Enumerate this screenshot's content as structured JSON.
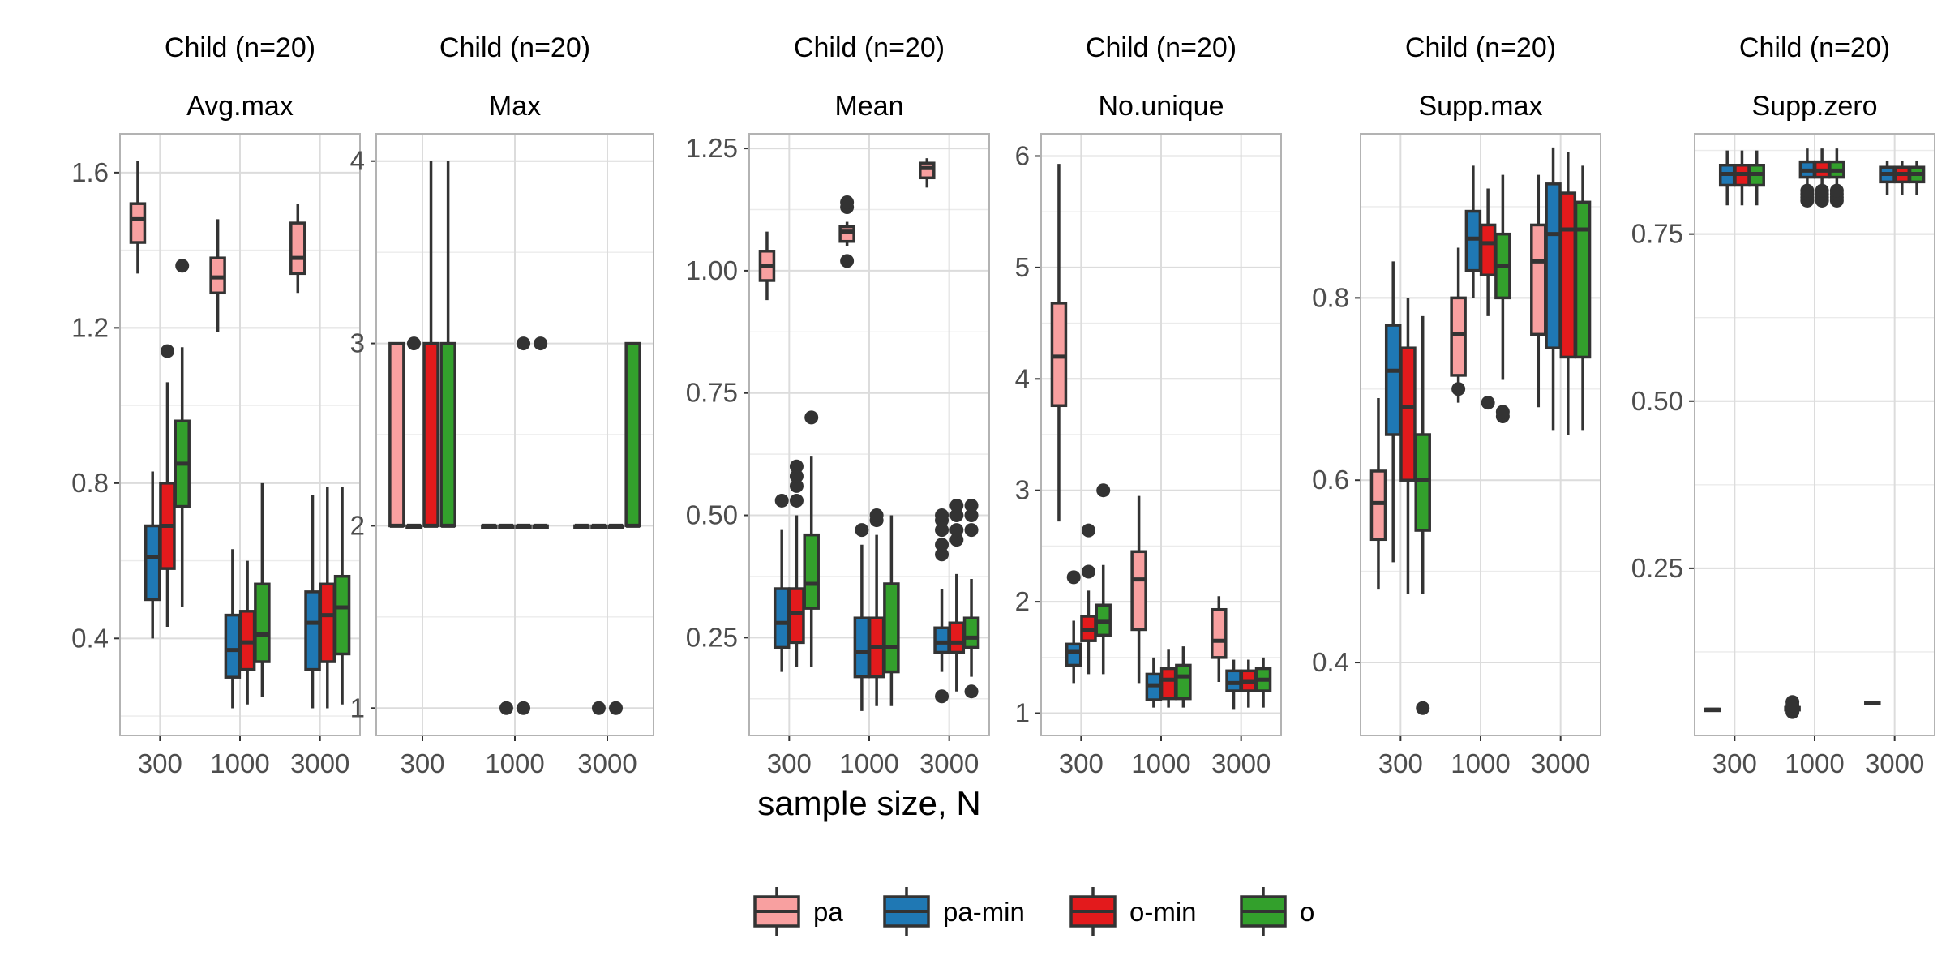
{
  "chart_data": {
    "type": "boxplot",
    "xlabel": "sample size, N",
    "ylabel": "",
    "categories": [
      "300",
      "1000",
      "3000"
    ],
    "legend": {
      "position": "bottom",
      "entries": [
        {
          "name": "pa",
          "color": "#F8A0A0"
        },
        {
          "name": "pa-min",
          "color": "#1F78B4"
        },
        {
          "name": "o-min",
          "color": "#E31A1C"
        },
        {
          "name": "o",
          "color": "#33A02C"
        }
      ]
    },
    "grid": true,
    "panels": [
      {
        "strip_top": "Child (n=20)",
        "strip_bottom": "Avg.max",
        "ylim": [
          0.15,
          1.7
        ],
        "yticks": [
          0.4,
          0.8,
          1.2,
          1.6
        ],
        "yticklabels": [
          "0.4",
          "0.8",
          "1.2",
          "1.6"
        ],
        "boxes": [
          [
            {
              "q1": 1.42,
              "med": 1.48,
              "q3": 1.52,
              "lo": 1.34,
              "hi": 1.63,
              "out": []
            },
            {
              "q1": 0.5,
              "med": 0.61,
              "q3": 0.69,
              "lo": 0.4,
              "hi": 0.83,
              "out": []
            },
            {
              "q1": 0.58,
              "med": 0.69,
              "q3": 0.8,
              "lo": 0.43,
              "hi": 1.06,
              "out": [
                1.14
              ]
            },
            {
              "q1": 0.74,
              "med": 0.85,
              "q3": 0.96,
              "lo": 0.48,
              "hi": 1.15,
              "out": [
                1.36
              ]
            }
          ],
          [
            {
              "q1": 1.29,
              "med": 1.33,
              "q3": 1.38,
              "lo": 1.19,
              "hi": 1.48,
              "out": []
            },
            {
              "q1": 0.3,
              "med": 0.37,
              "q3": 0.46,
              "lo": 0.22,
              "hi": 0.63,
              "out": []
            },
            {
              "q1": 0.32,
              "med": 0.39,
              "q3": 0.47,
              "lo": 0.23,
              "hi": 0.6,
              "out": []
            },
            {
              "q1": 0.34,
              "med": 0.41,
              "q3": 0.54,
              "lo": 0.25,
              "hi": 0.8,
              "out": []
            }
          ],
          [
            {
              "q1": 1.34,
              "med": 1.38,
              "q3": 1.47,
              "lo": 1.29,
              "hi": 1.52,
              "out": []
            },
            {
              "q1": 0.32,
              "med": 0.44,
              "q3": 0.52,
              "lo": 0.22,
              "hi": 0.77,
              "out": []
            },
            {
              "q1": 0.34,
              "med": 0.46,
              "q3": 0.54,
              "lo": 0.22,
              "hi": 0.79,
              "out": []
            },
            {
              "q1": 0.36,
              "med": 0.48,
              "q3": 0.56,
              "lo": 0.23,
              "hi": 0.79,
              "out": []
            }
          ]
        ]
      },
      {
        "strip_top": "Child (n=20)",
        "strip_bottom": "Max",
        "ylim": [
          0.85,
          4.15
        ],
        "yticks": [
          1,
          2,
          3,
          4
        ],
        "yticklabels": [
          "1",
          "2",
          "3",
          "4"
        ],
        "boxes": [
          [
            {
              "q1": 2,
              "med": 2,
              "q3": 3,
              "lo": 2,
              "hi": 3,
              "out": []
            },
            {
              "q1": 2,
              "med": 2,
              "q3": 2,
              "lo": 2,
              "hi": 2,
              "out": [
                3
              ]
            },
            {
              "q1": 2,
              "med": 2,
              "q3": 3,
              "lo": 2,
              "hi": 4,
              "out": []
            },
            {
              "q1": 2,
              "med": 2,
              "q3": 3,
              "lo": 2,
              "hi": 4,
              "out": []
            }
          ],
          [
            {
              "q1": 2,
              "med": 2,
              "q3": 2,
              "lo": 2,
              "hi": 2,
              "out": []
            },
            {
              "q1": 2,
              "med": 2,
              "q3": 2,
              "lo": 2,
              "hi": 2,
              "out": [
                1
              ]
            },
            {
              "q1": 2,
              "med": 2,
              "q3": 2,
              "lo": 2,
              "hi": 2,
              "out": [
                1,
                3
              ]
            },
            {
              "q1": 2,
              "med": 2,
              "q3": 2,
              "lo": 2,
              "hi": 2,
              "out": [
                3
              ]
            }
          ],
          [
            {
              "q1": 2,
              "med": 2,
              "q3": 2,
              "lo": 2,
              "hi": 2,
              "out": []
            },
            {
              "q1": 2,
              "med": 2,
              "q3": 2,
              "lo": 2,
              "hi": 2,
              "out": [
                1
              ]
            },
            {
              "q1": 2,
              "med": 2,
              "q3": 2,
              "lo": 2,
              "hi": 2,
              "out": [
                1
              ]
            },
            {
              "q1": 2,
              "med": 2,
              "q3": 3,
              "lo": 2,
              "hi": 3,
              "out": []
            }
          ]
        ]
      },
      {
        "strip_top": "Child (n=20)",
        "strip_bottom": "Mean",
        "ylim": [
          0.05,
          1.28
        ],
        "yticks": [
          0.25,
          0.5,
          0.75,
          1.0,
          1.25
        ],
        "yticklabels": [
          "0.25",
          "0.50",
          "0.75",
          "1.00",
          "1.25"
        ],
        "boxes": [
          [
            {
              "q1": 0.98,
              "med": 1.01,
              "q3": 1.04,
              "lo": 0.94,
              "hi": 1.08,
              "out": []
            },
            {
              "q1": 0.23,
              "med": 0.28,
              "q3": 0.35,
              "lo": 0.18,
              "hi": 0.47,
              "out": [
                0.53
              ]
            },
            {
              "q1": 0.24,
              "med": 0.3,
              "q3": 0.35,
              "lo": 0.19,
              "hi": 0.5,
              "out": [
                0.53,
                0.56,
                0.58,
                0.6
              ]
            },
            {
              "q1": 0.31,
              "med": 0.36,
              "q3": 0.46,
              "lo": 0.19,
              "hi": 0.62,
              "out": [
                0.7
              ]
            }
          ],
          [
            {
              "q1": 1.06,
              "med": 1.08,
              "q3": 1.09,
              "lo": 1.05,
              "hi": 1.1,
              "out": [
                1.02,
                1.13,
                1.14
              ]
            },
            {
              "q1": 0.17,
              "med": 0.22,
              "q3": 0.29,
              "lo": 0.1,
              "hi": 0.44,
              "out": [
                0.47
              ]
            },
            {
              "q1": 0.17,
              "med": 0.23,
              "q3": 0.29,
              "lo": 0.11,
              "hi": 0.46,
              "out": [
                0.49,
                0.5
              ]
            },
            {
              "q1": 0.18,
              "med": 0.23,
              "q3": 0.36,
              "lo": 0.11,
              "hi": 0.5,
              "out": []
            }
          ],
          [
            {
              "q1": 1.19,
              "med": 1.21,
              "q3": 1.22,
              "lo": 1.17,
              "hi": 1.23,
              "out": []
            },
            {
              "q1": 0.22,
              "med": 0.24,
              "q3": 0.27,
              "lo": 0.18,
              "hi": 0.35,
              "out": [
                0.13,
                0.42,
                0.44,
                0.47,
                0.49,
                0.5
              ]
            },
            {
              "q1": 0.22,
              "med": 0.24,
              "q3": 0.28,
              "lo": 0.14,
              "hi": 0.38,
              "out": [
                0.45,
                0.47,
                0.5,
                0.52
              ]
            },
            {
              "q1": 0.23,
              "med": 0.25,
              "q3": 0.29,
              "lo": 0.17,
              "hi": 0.37,
              "out": [
                0.14,
                0.47,
                0.5,
                0.52
              ]
            }
          ]
        ]
      },
      {
        "strip_top": "Child (n=20)",
        "strip_bottom": "No.unique",
        "ylim": [
          0.8,
          6.2
        ],
        "yticks": [
          1,
          2,
          3,
          4,
          5,
          6
        ],
        "yticklabels": [
          "1",
          "2",
          "3",
          "4",
          "5",
          "6"
        ],
        "boxes": [
          [
            {
              "q1": 3.76,
              "med": 4.2,
              "q3": 4.68,
              "lo": 2.72,
              "hi": 5.93,
              "out": []
            },
            {
              "q1": 1.43,
              "med": 1.55,
              "q3": 1.62,
              "lo": 1.27,
              "hi": 1.83,
              "out": [
                2.22
              ]
            },
            {
              "q1": 1.65,
              "med": 1.75,
              "q3": 1.87,
              "lo": 1.35,
              "hi": 2.1,
              "out": [
                2.27,
                2.64
              ]
            },
            {
              "q1": 1.7,
              "med": 1.82,
              "q3": 1.97,
              "lo": 1.35,
              "hi": 2.33,
              "out": [
                3.0
              ]
            }
          ],
          [
            {
              "q1": 1.75,
              "med": 2.2,
              "q3": 2.45,
              "lo": 1.27,
              "hi": 2.95,
              "out": []
            },
            {
              "q1": 1.12,
              "med": 1.25,
              "q3": 1.35,
              "lo": 1.05,
              "hi": 1.5,
              "out": []
            },
            {
              "q1": 1.13,
              "med": 1.3,
              "q3": 1.4,
              "lo": 1.05,
              "hi": 1.57,
              "out": []
            },
            {
              "q1": 1.13,
              "med": 1.33,
              "q3": 1.43,
              "lo": 1.05,
              "hi": 1.6,
              "out": []
            }
          ],
          [
            {
              "q1": 1.5,
              "med": 1.65,
              "q3": 1.93,
              "lo": 1.28,
              "hi": 2.05,
              "out": []
            },
            {
              "q1": 1.2,
              "med": 1.27,
              "q3": 1.38,
              "lo": 1.03,
              "hi": 1.48,
              "out": []
            },
            {
              "q1": 1.2,
              "med": 1.28,
              "q3": 1.38,
              "lo": 1.05,
              "hi": 1.48,
              "out": []
            },
            {
              "q1": 1.2,
              "med": 1.3,
              "q3": 1.4,
              "lo": 1.05,
              "hi": 1.5,
              "out": []
            }
          ]
        ]
      },
      {
        "strip_top": "Child (n=20)",
        "strip_bottom": "Supp.max",
        "ylim": [
          0.32,
          0.98
        ],
        "yticks": [
          0.4,
          0.6,
          0.8
        ],
        "yticklabels": [
          "0.4",
          "0.6",
          "0.8"
        ],
        "boxes": [
          [
            {
              "q1": 0.535,
              "med": 0.575,
              "q3": 0.61,
              "lo": 0.48,
              "hi": 0.69,
              "out": []
            },
            {
              "q1": 0.65,
              "med": 0.72,
              "q3": 0.77,
              "lo": 0.51,
              "hi": 0.84,
              "out": []
            },
            {
              "q1": 0.6,
              "med": 0.68,
              "q3": 0.745,
              "lo": 0.475,
              "hi": 0.8,
              "out": []
            },
            {
              "q1": 0.545,
              "med": 0.6,
              "q3": 0.65,
              "lo": 0.475,
              "hi": 0.78,
              "out": [
                0.35
              ]
            }
          ],
          [
            {
              "q1": 0.715,
              "med": 0.76,
              "q3": 0.8,
              "lo": 0.685,
              "hi": 0.855,
              "out": [
                0.7
              ]
            },
            {
              "q1": 0.83,
              "med": 0.865,
              "q3": 0.895,
              "lo": 0.8,
              "hi": 0.945,
              "out": []
            },
            {
              "q1": 0.825,
              "med": 0.86,
              "q3": 0.88,
              "lo": 0.78,
              "hi": 0.92,
              "out": [
                0.685
              ]
            },
            {
              "q1": 0.8,
              "med": 0.835,
              "q3": 0.87,
              "lo": 0.71,
              "hi": 0.935,
              "out": [
                0.67,
                0.675
              ]
            }
          ],
          [
            {
              "q1": 0.76,
              "med": 0.84,
              "q3": 0.88,
              "lo": 0.68,
              "hi": 0.935,
              "out": []
            },
            {
              "q1": 0.745,
              "med": 0.87,
              "q3": 0.925,
              "lo": 0.655,
              "hi": 0.965,
              "out": []
            },
            {
              "q1": 0.735,
              "med": 0.875,
              "q3": 0.915,
              "lo": 0.65,
              "hi": 0.96,
              "out": []
            },
            {
              "q1": 0.735,
              "med": 0.875,
              "q3": 0.905,
              "lo": 0.655,
              "hi": 0.945,
              "out": []
            }
          ]
        ]
      },
      {
        "strip_top": "Child (n=20)",
        "strip_bottom": "Supp.zero",
        "ylim": [
          0.0,
          0.9
        ],
        "yticks": [
          0.25,
          0.5,
          0.75
        ],
        "yticklabels": [
          "0.25",
          "0.50",
          "0.75"
        ],
        "boxes": [
          [
            {
              "q1": 0.0375,
              "med": 0.0385,
              "q3": 0.0395,
              "lo": 0.037,
              "hi": 0.04,
              "out": []
            },
            {
              "q1": 0.823,
              "med": 0.84,
              "q3": 0.853,
              "lo": 0.793,
              "hi": 0.875,
              "out": []
            },
            {
              "q1": 0.823,
              "med": 0.84,
              "q3": 0.853,
              "lo": 0.793,
              "hi": 0.875,
              "out": []
            },
            {
              "q1": 0.823,
              "med": 0.84,
              "q3": 0.853,
              "lo": 0.793,
              "hi": 0.875,
              "out": []
            }
          ],
          [
            {
              "q1": 0.038,
              "med": 0.04,
              "q3": 0.042,
              "lo": 0.036,
              "hi": 0.044,
              "out": [
                0.035,
                0.04,
                0.045,
                0.05
              ]
            },
            {
              "q1": 0.835,
              "med": 0.845,
              "q3": 0.858,
              "lo": 0.823,
              "hi": 0.878,
              "out": [
                0.8,
                0.805,
                0.81,
                0.815
              ]
            },
            {
              "q1": 0.835,
              "med": 0.845,
              "q3": 0.858,
              "lo": 0.823,
              "hi": 0.878,
              "out": [
                0.8,
                0.805,
                0.81,
                0.815
              ]
            },
            {
              "q1": 0.835,
              "med": 0.845,
              "q3": 0.858,
              "lo": 0.823,
              "hi": 0.878,
              "out": [
                0.8,
                0.805,
                0.81,
                0.815
              ]
            }
          ],
          [
            {
              "q1": 0.048,
              "med": 0.049,
              "q3": 0.05,
              "lo": 0.047,
              "hi": 0.051,
              "out": []
            },
            {
              "q1": 0.828,
              "med": 0.84,
              "q3": 0.85,
              "lo": 0.808,
              "hi": 0.86,
              "out": []
            },
            {
              "q1": 0.828,
              "med": 0.84,
              "q3": 0.85,
              "lo": 0.808,
              "hi": 0.86,
              "out": []
            },
            {
              "q1": 0.828,
              "med": 0.84,
              "q3": 0.85,
              "lo": 0.808,
              "hi": 0.86,
              "out": []
            }
          ]
        ]
      }
    ]
  }
}
